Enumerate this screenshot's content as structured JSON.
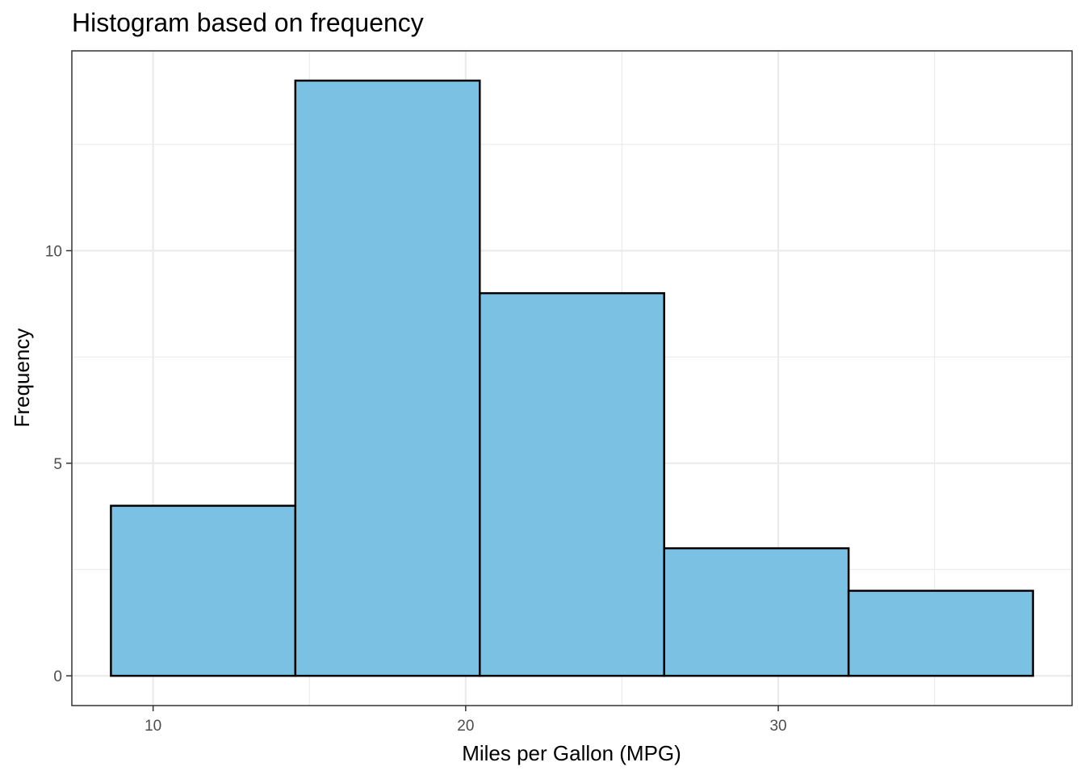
{
  "chart_data": {
    "type": "bar",
    "title": "Histogram based on frequency",
    "xlabel": "Miles per Gallon (MPG)",
    "ylabel": "Frequency",
    "bins": [
      {
        "x0": 8.65,
        "x1": 14.55,
        "count": 4
      },
      {
        "x0": 14.55,
        "x1": 20.45,
        "count": 14
      },
      {
        "x0": 20.45,
        "x1": 26.35,
        "count": 9
      },
      {
        "x0": 26.35,
        "x1": 32.25,
        "count": 3
      },
      {
        "x0": 32.25,
        "x1": 38.15,
        "count": 2
      }
    ],
    "xlim": [
      7.4,
      39.4
    ],
    "ylim": [
      -0.7,
      14.7
    ],
    "x_ticks": [
      10,
      20,
      30
    ],
    "x_tick_labels": [
      "10",
      "20",
      "30"
    ],
    "y_ticks": [
      0,
      5,
      10
    ],
    "y_tick_labels": [
      "0",
      "5",
      "10"
    ],
    "x_minor": [
      15,
      25,
      35
    ],
    "y_minor": [
      2.5,
      7.5,
      12.5
    ],
    "grid": true,
    "bar_fill": "#7AC1E4",
    "bar_edge": "#000000"
  }
}
